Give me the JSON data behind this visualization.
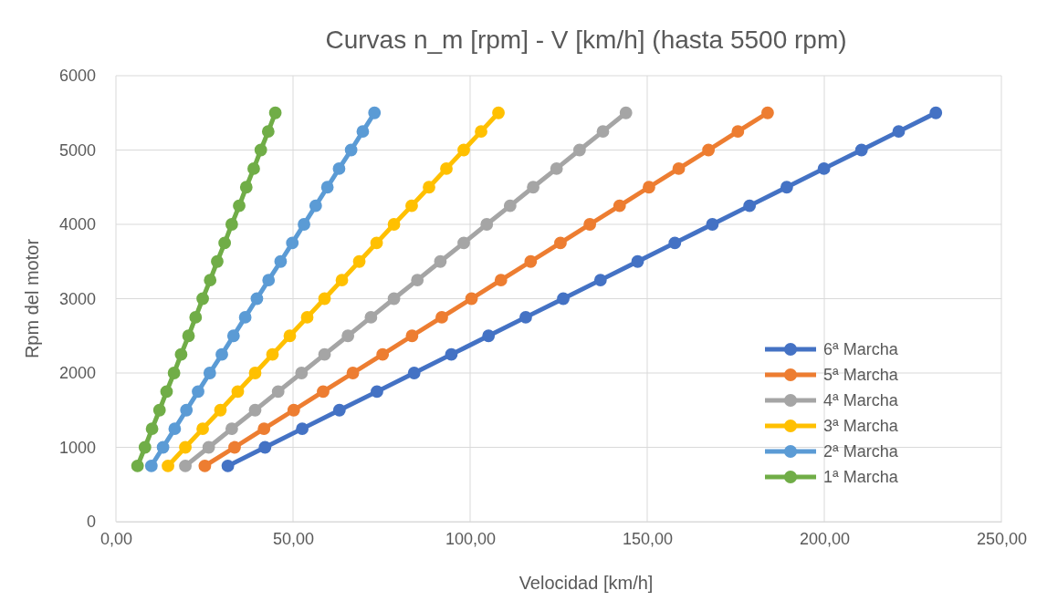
{
  "chart_data": {
    "type": "line",
    "title": "Curvas n_m [rpm] - V [km/h]   (hasta 5500 rpm)",
    "xlabel": "Velocidad [km/h]",
    "ylabel": "Rpm del motor",
    "xlim": [
      0,
      250
    ],
    "xticks": [
      {
        "value": 0,
        "label": "0,00"
      },
      {
        "value": 50,
        "label": "50,00"
      },
      {
        "value": 100,
        "label": "100,00"
      },
      {
        "value": 150,
        "label": "150,00"
      },
      {
        "value": 200,
        "label": "200,00"
      },
      {
        "value": 250,
        "label": "250,00"
      }
    ],
    "ylim": [
      0,
      6000
    ],
    "yticks": [
      0,
      1000,
      2000,
      3000,
      4000,
      5000,
      6000
    ],
    "grid": true,
    "legend": "bottom right",
    "marker": "circle",
    "line_style": "solid",
    "series": [
      {
        "name": "6ª Marcha",
        "color": "#4472c4",
        "x": [
          31.6,
          42.1,
          52.6,
          63.1,
          73.7,
          84.2,
          94.7,
          105.2,
          115.7,
          126.3,
          136.8,
          147.3,
          157.8,
          168.4,
          178.9,
          189.4,
          199.9,
          210.5,
          221.0,
          231.5
        ],
        "values": [
          750,
          1000,
          1250,
          1500,
          1750,
          2000,
          2250,
          2500,
          2750,
          3000,
          3250,
          3500,
          3750,
          4000,
          4250,
          4500,
          4750,
          5000,
          5250,
          5500
        ]
      },
      {
        "name": "5ª Marcha",
        "color": "#ed7d31",
        "x": [
          25.1,
          33.5,
          41.8,
          50.2,
          58.5,
          66.9,
          75.3,
          83.6,
          92.0,
          100.4,
          108.7,
          117.1,
          125.5,
          133.8,
          142.2,
          150.5,
          158.9,
          167.3,
          175.6,
          184.0
        ],
        "values": [
          750,
          1000,
          1250,
          1500,
          1750,
          2000,
          2250,
          2500,
          2750,
          3000,
          3250,
          3500,
          3750,
          4000,
          4250,
          4500,
          4750,
          5000,
          5250,
          5500
        ]
      },
      {
        "name": "4ª Marcha",
        "color": "#a5a5a5",
        "x": [
          19.6,
          26.2,
          32.7,
          39.3,
          45.8,
          52.4,
          58.9,
          65.5,
          72.0,
          78.5,
          85.1,
          91.6,
          98.2,
          104.7,
          111.3,
          117.8,
          124.4,
          130.9,
          137.5,
          144.0
        ],
        "values": [
          750,
          1000,
          1250,
          1500,
          1750,
          2000,
          2250,
          2500,
          2750,
          3000,
          3250,
          3500,
          3750,
          4000,
          4250,
          4500,
          4750,
          5000,
          5250,
          5500
        ]
      },
      {
        "name": "3ª Marcha",
        "color": "#ffc000",
        "x": [
          14.7,
          19.6,
          24.5,
          29.5,
          34.4,
          39.3,
          44.2,
          49.1,
          54.0,
          58.9,
          63.8,
          68.7,
          73.6,
          78.5,
          83.5,
          88.4,
          93.3,
          98.2,
          103.1,
          108.0
        ],
        "values": [
          750,
          1000,
          1250,
          1500,
          1750,
          2000,
          2250,
          2500,
          2750,
          3000,
          3250,
          3500,
          3750,
          4000,
          4250,
          4500,
          4750,
          5000,
          5250,
          5500
        ]
      },
      {
        "name": "2ª Marcha",
        "color": "#5b9bd5",
        "x": [
          10.0,
          13.3,
          16.6,
          19.9,
          23.2,
          26.5,
          29.9,
          33.2,
          36.5,
          39.8,
          43.1,
          46.5,
          49.8,
          53.1,
          56.4,
          59.7,
          63.0,
          66.4,
          69.7,
          73.0
        ],
        "values": [
          750,
          1000,
          1250,
          1500,
          1750,
          2000,
          2250,
          2500,
          2750,
          3000,
          3250,
          3500,
          3750,
          4000,
          4250,
          4500,
          4750,
          5000,
          5250,
          5500
        ]
      },
      {
        "name": "1ª Marcha",
        "color": "#70ad47",
        "x": [
          6.1,
          8.2,
          10.2,
          12.3,
          14.3,
          16.4,
          18.4,
          20.5,
          22.5,
          24.5,
          26.6,
          28.6,
          30.7,
          32.7,
          34.8,
          36.8,
          38.9,
          40.9,
          43.0,
          45.0
        ],
        "values": [
          750,
          1000,
          1250,
          1500,
          1750,
          2000,
          2250,
          2500,
          2750,
          3000,
          3250,
          3500,
          3750,
          4000,
          4250,
          4500,
          4750,
          5000,
          5250,
          5500
        ]
      }
    ]
  }
}
